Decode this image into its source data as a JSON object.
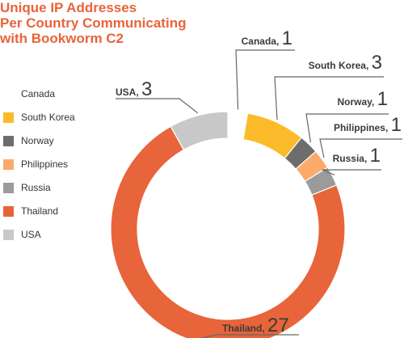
{
  "title": {
    "line1": "Unique IP Addresses",
    "line2": "Per Country Communicating",
    "line3": "with Bookworm C2"
  },
  "chart_data": {
    "type": "pie",
    "title": "Unique IP Addresses Per Country Communicating with Bookworm C2",
    "donut": true,
    "legend_position": "left",
    "slices": [
      {
        "name": "Canada",
        "value": 1,
        "color": "#ffffff"
      },
      {
        "name": "South Korea",
        "value": 3,
        "color": "#fbbb2a"
      },
      {
        "name": "Norway",
        "value": 1,
        "color": "#6d6d6d"
      },
      {
        "name": "Philippines",
        "value": 1,
        "color": "#fcaa6b"
      },
      {
        "name": "Russia",
        "value": 1,
        "color": "#9b9b9b"
      },
      {
        "name": "Thailand",
        "value": 27,
        "color": "#e8643a"
      },
      {
        "name": "USA",
        "value": 3,
        "color": "#c8c8c8"
      }
    ]
  }
}
